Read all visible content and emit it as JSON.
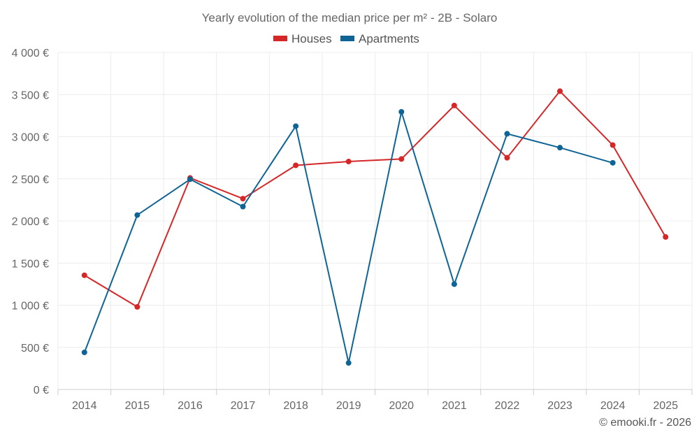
{
  "chart_data": {
    "type": "line",
    "title": "Yearly evolution of the median price per m² - 2B - Solaro",
    "categories": [
      "2014",
      "2015",
      "2016",
      "2017",
      "2018",
      "2019",
      "2020",
      "2021",
      "2022",
      "2023",
      "2024",
      "2025"
    ],
    "series": [
      {
        "name": "Houses",
        "color": "#d62728",
        "values": [
          1355,
          980,
          2510,
          2265,
          2660,
          2705,
          2735,
          3370,
          2750,
          3540,
          2900,
          1810
        ]
      },
      {
        "name": "Apartments",
        "color": "#0f6496",
        "values": [
          440,
          2070,
          2495,
          2170,
          3125,
          315,
          3295,
          1250,
          3035,
          2870,
          2690,
          null
        ]
      }
    ],
    "yticks": [
      0,
      500,
      1000,
      1500,
      2000,
      2500,
      3000,
      3500,
      4000
    ],
    "ytick_labels": [
      "0 €",
      "500 €",
      "1 000 €",
      "1 500 €",
      "2 000 €",
      "2 500 €",
      "3 000 €",
      "3 500 €",
      "4 000 €"
    ],
    "ylim": [
      0,
      4000
    ],
    "xlabel": "",
    "ylabel": "",
    "legend_position": "top-center",
    "grid": true
  },
  "credit": "© emooki.fr - 2026"
}
